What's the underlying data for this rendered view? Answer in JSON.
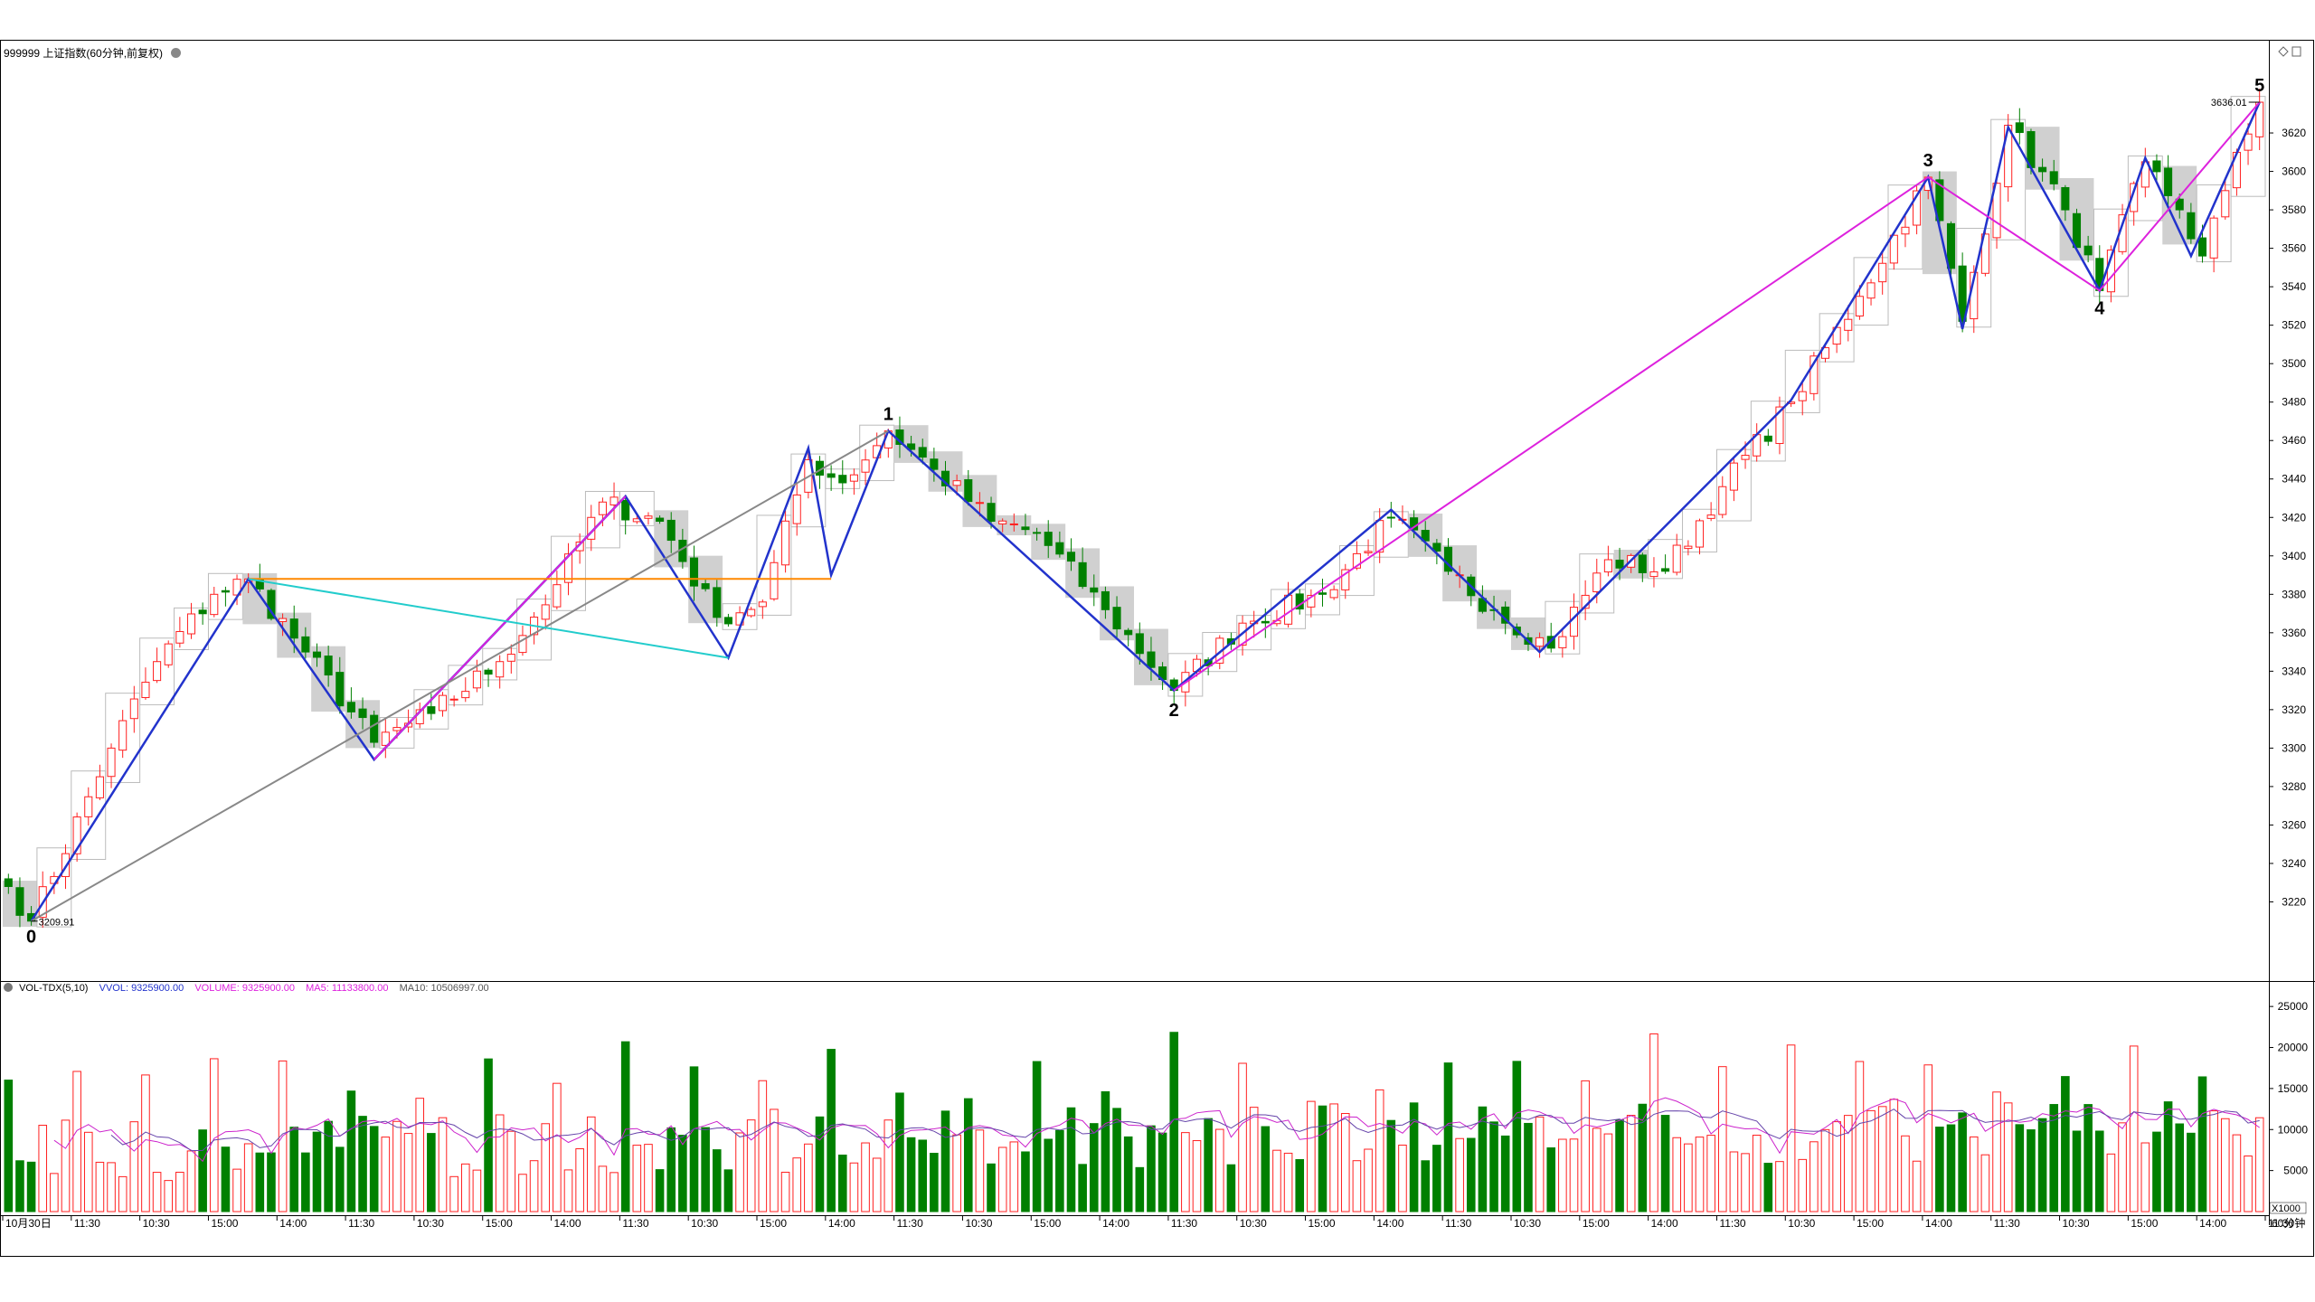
{
  "header": {
    "symbol_title": "999999 上证指数(60分钟,前复权)"
  },
  "indicator_header": {
    "name": "VOL-TDX(5,10)",
    "vvol": "VVOL: 9325900.00",
    "volume": "VOLUME: 9325900.00",
    "ma5": "MA5: 11133800.00",
    "ma10": "MA10: 10506997.00"
  },
  "price_axis": {
    "min": 3200,
    "max": 3660,
    "ticks": [
      3220,
      3240,
      3260,
      3280,
      3300,
      3320,
      3340,
      3360,
      3380,
      3400,
      3420,
      3440,
      3460,
      3480,
      3500,
      3520,
      3540,
      3560,
      3580,
      3600,
      3620
    ]
  },
  "volume_axis": {
    "max": 27000,
    "ticks": [
      5000,
      10000,
      15000,
      20000,
      25000
    ],
    "unit_label": "X1000"
  },
  "time_axis": {
    "labels": [
      {
        "text": "10月30日",
        "bar": 0
      },
      {
        "text": "11:30",
        "bar": 6
      },
      {
        "text": "10:30",
        "bar": 12
      },
      {
        "text": "15:00",
        "bar": 18
      },
      {
        "text": "14:00",
        "bar": 24
      },
      {
        "text": "11:30",
        "bar": 30
      },
      {
        "text": "10:30",
        "bar": 36
      },
      {
        "text": "15:00",
        "bar": 42
      },
      {
        "text": "14:00",
        "bar": 48
      },
      {
        "text": "11:30",
        "bar": 54
      },
      {
        "text": "10:30",
        "bar": 60
      },
      {
        "text": "15:00",
        "bar": 66
      },
      {
        "text": "14:00",
        "bar": 72
      },
      {
        "text": "11:30",
        "bar": 78
      },
      {
        "text": "10:30",
        "bar": 84
      },
      {
        "text": "15:00",
        "bar": 90
      },
      {
        "text": "14:00",
        "bar": 96
      },
      {
        "text": "11:30",
        "bar": 102
      },
      {
        "text": "10:30",
        "bar": 108
      },
      {
        "text": "15:00",
        "bar": 114
      },
      {
        "text": "14:00",
        "bar": 120
      },
      {
        "text": "11:30",
        "bar": 126
      },
      {
        "text": "10:30",
        "bar": 132
      },
      {
        "text": "15:00",
        "bar": 138
      },
      {
        "text": "14:00",
        "bar": 144
      },
      {
        "text": "11:30",
        "bar": 150
      },
      {
        "text": "10:30",
        "bar": 156
      },
      {
        "text": "15:00",
        "bar": 162
      },
      {
        "text": "14:00",
        "bar": 168
      },
      {
        "text": "11:30",
        "bar": 174
      },
      {
        "text": "10:30",
        "bar": 180
      },
      {
        "text": "15:00",
        "bar": 186
      },
      {
        "text": "14:00",
        "bar": 192
      },
      {
        "text": "11:30",
        "bar": 198
      }
    ],
    "period_label": "60分钟"
  },
  "price_labels": {
    "low_value": "3209.91",
    "high_value": "3636.01"
  },
  "wave_labels": [
    {
      "text": "0",
      "bar": 2,
      "price": 3210,
      "pos": "below"
    },
    {
      "text": "1",
      "bar": 77,
      "price": 3465,
      "pos": "above"
    },
    {
      "text": "2",
      "bar": 102,
      "price": 3328,
      "pos": "below"
    },
    {
      "text": "3",
      "bar": 168,
      "price": 3597,
      "pos": "above"
    },
    {
      "text": "4",
      "bar": 183,
      "price": 3537,
      "pos": "below"
    },
    {
      "text": "5",
      "bar": 197,
      "price": 3636,
      "pos": "above"
    }
  ],
  "chart_data": {
    "type": "candlestick",
    "anchors": [
      [
        0,
        3228
      ],
      [
        2,
        3210
      ],
      [
        9,
        3300
      ],
      [
        13,
        3345
      ],
      [
        18,
        3380
      ],
      [
        21,
        3388
      ],
      [
        26,
        3350
      ],
      [
        32,
        3303
      ],
      [
        37,
        3318
      ],
      [
        43,
        3345
      ],
      [
        48,
        3385
      ],
      [
        52,
        3428
      ],
      [
        57,
        3418
      ],
      [
        62,
        3368
      ],
      [
        66,
        3376
      ],
      [
        70,
        3450
      ],
      [
        73,
        3438
      ],
      [
        77,
        3465
      ],
      [
        81,
        3445
      ],
      [
        86,
        3418
      ],
      [
        90,
        3412
      ],
      [
        96,
        3372
      ],
      [
        102,
        3330
      ],
      [
        108,
        3365
      ],
      [
        115,
        3380
      ],
      [
        121,
        3420
      ],
      [
        126,
        3392
      ],
      [
        130,
        3372
      ],
      [
        135,
        3352
      ],
      [
        140,
        3398
      ],
      [
        145,
        3392
      ],
      [
        150,
        3436
      ],
      [
        156,
        3480
      ],
      [
        162,
        3535
      ],
      [
        168,
        3597
      ],
      [
        171,
        3522
      ],
      [
        175,
        3624
      ],
      [
        180,
        3580
      ],
      [
        183,
        3538
      ],
      [
        187,
        3605
      ],
      [
        190,
        3580
      ],
      [
        192,
        3556
      ],
      [
        194,
        3590
      ],
      [
        197,
        3636
      ]
    ],
    "bar_count": 198,
    "wave_lines": [
      {
        "color": "#2233cc",
        "points": [
          [
            2,
            3210
          ],
          [
            21,
            3388
          ],
          [
            32,
            3294
          ],
          [
            54,
            3431
          ],
          [
            63,
            3347
          ],
          [
            70,
            3456
          ],
          [
            72,
            3390
          ],
          [
            77,
            3465
          ],
          [
            102,
            3330
          ],
          [
            121,
            3424
          ],
          [
            134,
            3350
          ],
          [
            156,
            3481
          ],
          [
            168,
            3597
          ],
          [
            171,
            3518
          ],
          [
            175,
            3623
          ],
          [
            183,
            3538
          ],
          [
            187,
            3607
          ],
          [
            191,
            3556
          ],
          [
            197,
            3636
          ]
        ]
      },
      {
        "color": "#dd22dd",
        "points": [
          [
            32,
            3294
          ],
          [
            54,
            3431
          ]
        ]
      },
      {
        "color": "#dd22dd",
        "points": [
          [
            102,
            3330
          ],
          [
            168,
            3597
          ],
          [
            183,
            3538
          ],
          [
            197,
            3636
          ]
        ]
      },
      {
        "color": "#888888",
        "points": [
          [
            2,
            3210
          ],
          [
            77,
            3465
          ]
        ]
      },
      {
        "color": "#ff8800",
        "points": [
          [
            21,
            3388
          ],
          [
            72,
            3388
          ]
        ]
      },
      {
        "color": "#22cccc",
        "points": [
          [
            21,
            3388
          ],
          [
            63,
            3347
          ]
        ]
      }
    ]
  },
  "colors": {
    "up": "#ff2020",
    "down": "#008000",
    "box_gray": "#d0d0d0",
    "ma5": "#cc22cc",
    "ma10": "#6644aa"
  }
}
